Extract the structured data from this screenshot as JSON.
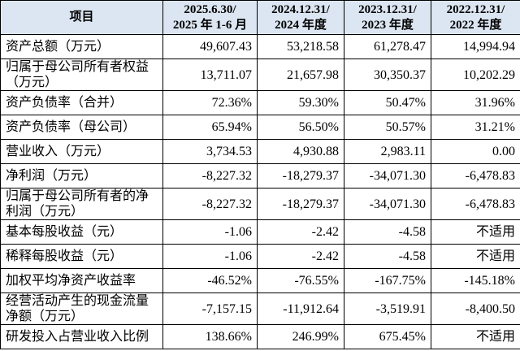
{
  "table": {
    "header": [
      [
        "项目"
      ],
      [
        "2025.6.30/",
        "2025 年 1-6 月"
      ],
      [
        "2024.12.31/",
        "2024 年度"
      ],
      [
        "2023.12.31/",
        "2023 年度"
      ],
      [
        "2022.12.31/",
        "2022 年度"
      ]
    ],
    "rows": [
      [
        "资产总额（万元）",
        "49,607.43",
        "53,218.58",
        "61,278.47",
        "14,994.94"
      ],
      [
        "归属于母公司所有者权益（万元）",
        "13,711.07",
        "21,657.98",
        "30,350.37",
        "10,202.29"
      ],
      [
        "资产负债率（合并）",
        "72.36%",
        "59.30%",
        "50.47%",
        "31.96%"
      ],
      [
        "资产负债率（母公司）",
        "65.94%",
        "56.50%",
        "50.57%",
        "31.21%"
      ],
      [
        "营业收入（万元）",
        "3,734.53",
        "4,930.88",
        "2,983.11",
        "0.00"
      ],
      [
        "净利润（万元）",
        "-8,227.32",
        "-18,279.37",
        "-34,071.30",
        "-6,478.83"
      ],
      [
        "归属于母公司所有者的净利润（万元）",
        "-8,227.32",
        "-18,279.37",
        "-34,071.30",
        "-6,478.83"
      ],
      [
        "基本每股收益（元）",
        "-1.06",
        "-2.42",
        "-4.58",
        "不适用"
      ],
      [
        "稀释每股收益（元）",
        "-1.06",
        "-2.42",
        "-4.58",
        "不适用"
      ],
      [
        "加权平均净资产收益率",
        "-46.52%",
        "-76.55%",
        "-167.75%",
        "-145.18%"
      ],
      [
        "经营活动产生的现金流量净额（万元）",
        "-7,157.15",
        "-11,912.64",
        "-3,519.91",
        "-8,400.50"
      ],
      [
        "研发投入占营业收入比例",
        "138.66%",
        "246.99%",
        "675.45%",
        "不适用"
      ]
    ]
  }
}
